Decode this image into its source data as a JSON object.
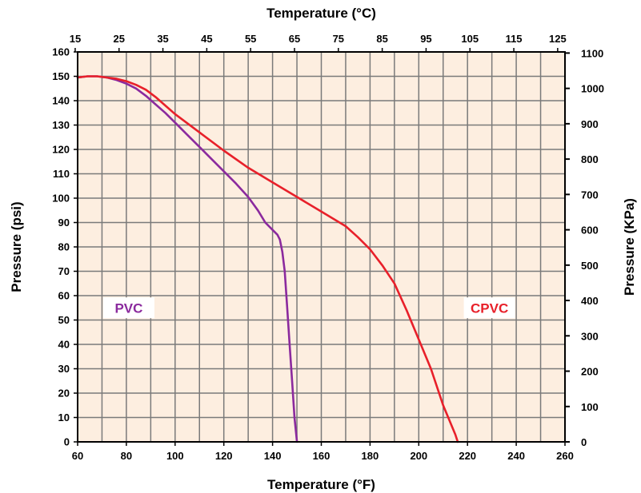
{
  "chart_data": {
    "type": "line",
    "title": "",
    "xlabel_bottom": "Temperature (°F)",
    "xlabel_top": "Temperature (°C)",
    "ylabel_left": "Pressure (psi)",
    "ylabel_right": "Pressure (KPa)",
    "xlim": [
      60,
      260
    ],
    "ylim": [
      0,
      160
    ],
    "x_ticks_bottom": [
      60,
      80,
      100,
      120,
      140,
      160,
      180,
      200,
      220,
      240,
      260
    ],
    "x_ticks_top": [
      15,
      25,
      35,
      45,
      55,
      65,
      75,
      85,
      95,
      105,
      115,
      125
    ],
    "y_ticks_left": [
      0,
      10,
      20,
      30,
      40,
      50,
      60,
      70,
      80,
      90,
      100,
      110,
      120,
      130,
      140,
      150,
      160
    ],
    "y_ticks_right": [
      0,
      100,
      200,
      300,
      400,
      500,
      600,
      700,
      800,
      900,
      1000,
      1100
    ],
    "grid": true,
    "background_color": "#fdeee0",
    "series": [
      {
        "name": "PVC",
        "color": "#8b2a9e",
        "x": [
          60,
          64,
          68,
          72,
          76,
          80,
          84,
          88,
          92,
          96,
          100,
          105,
          110,
          115,
          120,
          125,
          130,
          134,
          137,
          140,
          142,
          143,
          144,
          145,
          146,
          147,
          148,
          149,
          150
        ],
        "y": [
          149.5,
          150,
          150,
          149.5,
          148.5,
          147,
          145,
          142,
          138.5,
          135,
          131,
          126,
          121,
          116,
          111,
          106,
          100.5,
          95,
          90,
          87,
          85,
          83,
          78,
          70,
          55,
          40,
          25,
          10,
          0
        ]
      },
      {
        "name": "CPVC",
        "color": "#e8202a",
        "x": [
          60,
          64,
          68,
          72,
          76,
          80,
          84,
          88,
          92,
          96,
          100,
          110,
          120,
          130,
          140,
          150,
          160,
          170,
          175,
          180,
          185,
          190,
          195,
          200,
          205,
          210,
          215,
          216
        ],
        "y": [
          149.5,
          150,
          150,
          149.5,
          149,
          148,
          146.5,
          144.5,
          141.5,
          138,
          134.5,
          127,
          119.5,
          112.5,
          106.5,
          100.5,
          94.5,
          88.5,
          84,
          79,
          72.5,
          65,
          54,
          42,
          30,
          15,
          3,
          0
        ]
      }
    ]
  }
}
